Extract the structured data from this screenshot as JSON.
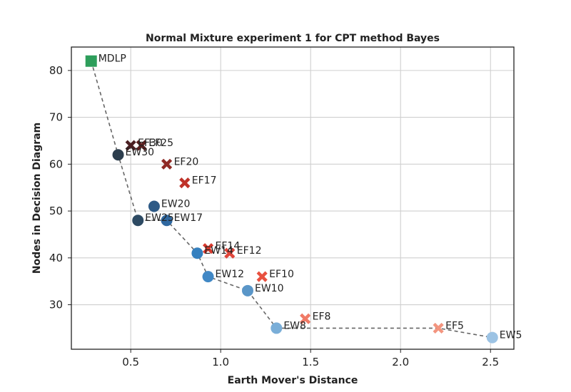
{
  "chart_data": {
    "type": "scatter",
    "title": "Normal Mixture experiment 1 for CPT method Bayes",
    "xlabel": "Earth Mover's Distance",
    "ylabel": "Nodes in Decision Diagram",
    "xlim": [
      0.17,
      2.63
    ],
    "ylim": [
      20.5,
      85
    ],
    "xticks": [
      "0.5",
      "1.0",
      "1.5",
      "2.0",
      "2.5"
    ],
    "yticks": [
      "30",
      "40",
      "50",
      "60",
      "70",
      "80"
    ],
    "grid": true,
    "points": [
      {
        "label": "MDLP",
        "x": 0.28,
        "y": 82,
        "marker": "square",
        "color": "#2e9e5b"
      },
      {
        "label": "EW30",
        "x": 0.43,
        "y": 62,
        "marker": "circle",
        "color": "#2d3e4e"
      },
      {
        "label": "EF30",
        "x": 0.5,
        "y": 64,
        "marker": "x",
        "color": "#4a1f22"
      },
      {
        "label": "EF25",
        "x": 0.56,
        "y": 64,
        "marker": "x",
        "color": "#5a2020"
      },
      {
        "label": "EW25",
        "x": 0.54,
        "y": 48,
        "marker": "circle",
        "color": "#2d4a63"
      },
      {
        "label": "EW20",
        "x": 0.63,
        "y": 51,
        "marker": "circle",
        "color": "#2e5a86"
      },
      {
        "label": "EF20",
        "x": 0.7,
        "y": 60,
        "marker": "x",
        "color": "#8f2a25"
      },
      {
        "label": "EW17",
        "x": 0.7,
        "y": 48,
        "marker": "circle",
        "color": "#2f68a0"
      },
      {
        "label": "EF17",
        "x": 0.8,
        "y": 56,
        "marker": "x",
        "color": "#bf3229"
      },
      {
        "label": "EW14",
        "x": 0.87,
        "y": 41,
        "marker": "circle",
        "color": "#3580bf"
      },
      {
        "label": "EF14",
        "x": 0.93,
        "y": 42,
        "marker": "x",
        "color": "#d83a2e"
      },
      {
        "label": "EW12",
        "x": 0.93,
        "y": 36,
        "marker": "circle",
        "color": "#4188c5"
      },
      {
        "label": "EF12",
        "x": 1.05,
        "y": 41,
        "marker": "x",
        "color": "#e0453a"
      },
      {
        "label": "EW10",
        "x": 1.15,
        "y": 33,
        "marker": "circle",
        "color": "#5a96c8"
      },
      {
        "label": "EF10",
        "x": 1.23,
        "y": 36,
        "marker": "x",
        "color": "#e8503f"
      },
      {
        "label": "EW8",
        "x": 1.31,
        "y": 25,
        "marker": "circle",
        "color": "#7aaed8"
      },
      {
        "label": "EF8",
        "x": 1.47,
        "y": 27,
        "marker": "x",
        "color": "#f07a66"
      },
      {
        "label": "EF5",
        "x": 2.21,
        "y": 25,
        "marker": "x",
        "color": "#f3957f"
      },
      {
        "label": "EW5",
        "x": 2.51,
        "y": 23,
        "marker": "circle",
        "color": "#9cc3e4"
      }
    ],
    "pareto_line": {
      "color": "#666666",
      "points": [
        [
          0.28,
          82
        ],
        [
          0.43,
          62
        ],
        [
          0.54,
          48
        ],
        [
          0.7,
          48
        ],
        [
          0.87,
          41
        ],
        [
          0.93,
          36
        ],
        [
          1.15,
          33
        ],
        [
          1.31,
          25
        ],
        [
          2.21,
          25
        ],
        [
          2.51,
          23
        ]
      ]
    }
  }
}
